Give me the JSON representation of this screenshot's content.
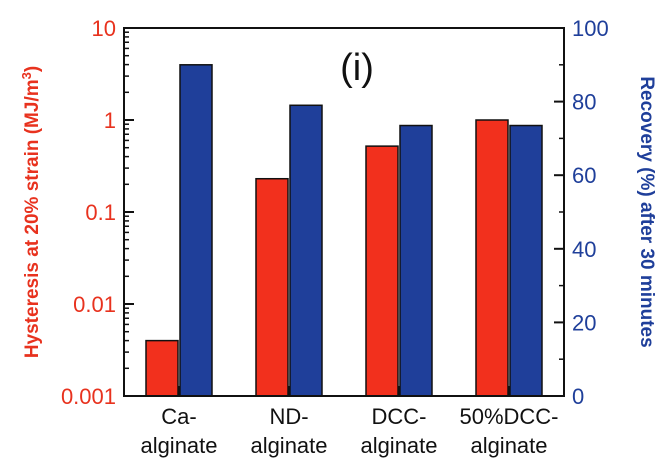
{
  "chart_data": {
    "type": "bar",
    "panel_label": "(i)",
    "categories": [
      [
        "Ca-",
        "alginate"
      ],
      [
        "ND-",
        "alginate"
      ],
      [
        "DCC-",
        "alginate"
      ],
      [
        "50%DCC-",
        "alginate"
      ]
    ],
    "left_axis": {
      "label_parts": [
        "Hysteresis at 20% strain (MJ/m",
        "3",
        ")"
      ],
      "scale": "log",
      "ylim": [
        0.001,
        10
      ],
      "ticks": [
        0.001,
        0.01,
        0.1,
        1,
        10
      ],
      "tick_labels": [
        "0.001",
        "0.01",
        "0.1",
        "1",
        "10"
      ],
      "color": "#e8321e"
    },
    "right_axis": {
      "label": "Recovery (%) after 30 minutes",
      "scale": "linear",
      "ylim": [
        0,
        100
      ],
      "ticks": [
        0,
        20,
        40,
        60,
        80,
        100
      ],
      "tick_labels": [
        "0",
        "20",
        "40",
        "60",
        "80",
        "100"
      ],
      "color": "#1f3f9a"
    },
    "series": [
      {
        "axis": "left",
        "color": "#f2301d",
        "values": [
          0.004,
          0.23,
          0.52,
          1.0
        ]
      },
      {
        "axis": "right",
        "color": "#1f3f9a",
        "values": [
          90,
          79,
          73.5,
          73.5
        ]
      }
    ]
  }
}
